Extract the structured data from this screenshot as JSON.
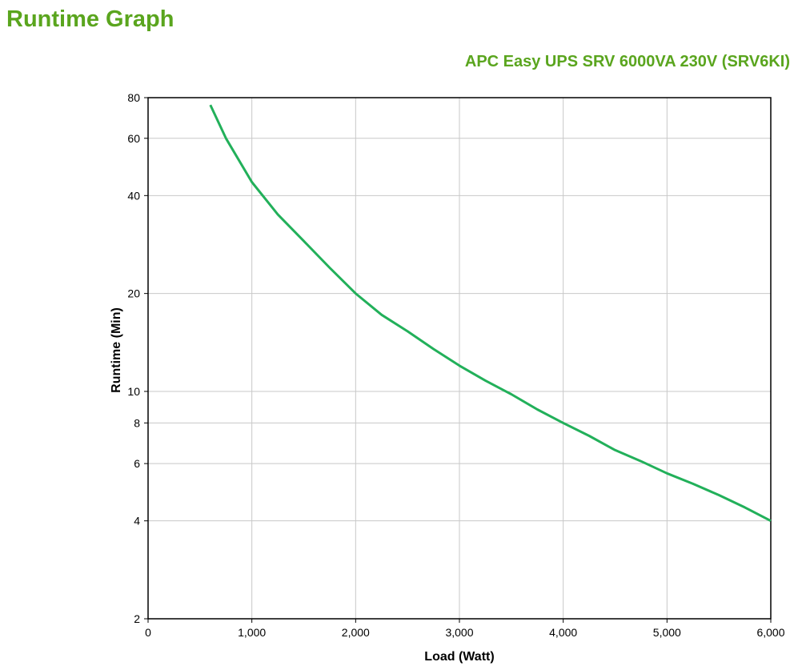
{
  "page": {
    "title": "Runtime Graph",
    "model": "APC Easy UPS SRV 6000VA 230V (SRV6KI)"
  },
  "chart_data": {
    "type": "line",
    "xlabel": "Load (Watt)",
    "ylabel": "Runtime (Min)",
    "xlim": [
      0,
      6000
    ],
    "ylim": [
      2,
      80
    ],
    "yscale": "log",
    "grid": true,
    "xticks": [
      0,
      1000,
      2000,
      3000,
      4000,
      5000,
      6000
    ],
    "xtick_labels": [
      "0",
      "1,000",
      "2,000",
      "3,000",
      "4,000",
      "5,000",
      "6,000"
    ],
    "yticks": [
      2,
      4,
      6,
      8,
      10,
      20,
      40,
      60,
      80
    ],
    "ytick_labels": [
      "2",
      "4",
      "6",
      "8",
      "10",
      "20",
      "40",
      "60",
      "80"
    ],
    "line_color": "#22b05a",
    "series": [
      {
        "x": [
          600,
          750,
          1000,
          1250,
          1500,
          1750,
          2000,
          2250,
          2500,
          2750,
          3000,
          3250,
          3500,
          3750,
          4000,
          4250,
          4500,
          4750,
          5000,
          5250,
          5500,
          5750,
          6000
        ],
        "y": [
          76,
          60,
          44,
          35,
          29,
          24,
          20,
          17.2,
          15.3,
          13.5,
          12,
          10.8,
          9.8,
          8.8,
          8,
          7.3,
          6.6,
          6.1,
          5.6,
          5.2,
          4.8,
          4.4,
          4
        ]
      }
    ]
  }
}
